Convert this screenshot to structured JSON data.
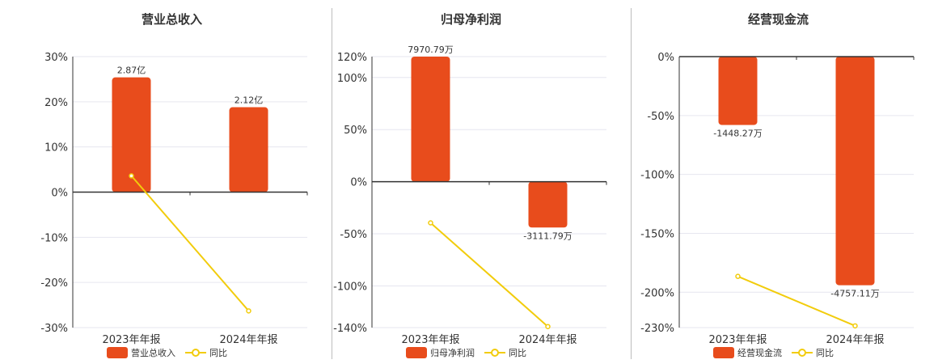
{
  "colors": {
    "bar": "#e84c1c",
    "line": "#f2cc0c",
    "axis": "#333333",
    "grid": "#e6e6ef",
    "text": "#333333"
  },
  "chart_data": [
    {
      "type": "bar",
      "title": "营业总收入",
      "categories": [
        "2023年年报",
        "2024年年报"
      ],
      "series": [
        {
          "name": "营业总收入",
          "type": "bar",
          "values": [
            25.4,
            18.8
          ],
          "labels": [
            "2.87亿",
            "2.12亿"
          ]
        },
        {
          "name": "同比",
          "type": "line",
          "values": [
            3.6,
            -26.3
          ]
        }
      ],
      "yticks": [
        30,
        20,
        10,
        0,
        -10,
        -20,
        -30
      ],
      "ytick_labels": [
        "30%",
        "20%",
        "10%",
        "0%",
        "-10%",
        "-20%",
        "-30%"
      ],
      "ylim": [
        -30,
        30
      ],
      "grid": true,
      "legend": "bottom"
    },
    {
      "type": "bar",
      "title": "归母净利润",
      "categories": [
        "2023年年报",
        "2024年年报"
      ],
      "series": [
        {
          "name": "归母净利润",
          "type": "bar",
          "values": [
            120,
            -44
          ],
          "labels": [
            "7970.79万",
            "-3111.79万"
          ]
        },
        {
          "name": "同比",
          "type": "line",
          "values": [
            -39.5,
            -139
          ]
        }
      ],
      "yticks": [
        120,
        100,
        50,
        0,
        -50,
        -100,
        -140
      ],
      "ytick_labels": [
        "120%",
        "100%",
        "50%",
        "0%",
        "-50%",
        "-100%",
        "-140%"
      ],
      "ylim": [
        -140,
        120
      ],
      "grid": true,
      "legend": "bottom"
    },
    {
      "type": "bar",
      "title": "经营现金流",
      "categories": [
        "2023年年报",
        "2024年年报"
      ],
      "series": [
        {
          "name": "经营现金流",
          "type": "bar",
          "values": [
            -58,
            -194
          ],
          "labels": [
            "-1448.27万",
            "-4757.11万"
          ]
        },
        {
          "name": "同比",
          "type": "line",
          "values": [
            -186.5,
            -228.5
          ]
        }
      ],
      "yticks": [
        0,
        -50,
        -100,
        -150,
        -200,
        -230
      ],
      "ytick_labels": [
        "0%",
        "-50%",
        "-100%",
        "-150%",
        "-200%",
        "-230%"
      ],
      "ylim": [
        -230,
        0
      ],
      "grid": true,
      "legend": "bottom"
    }
  ]
}
